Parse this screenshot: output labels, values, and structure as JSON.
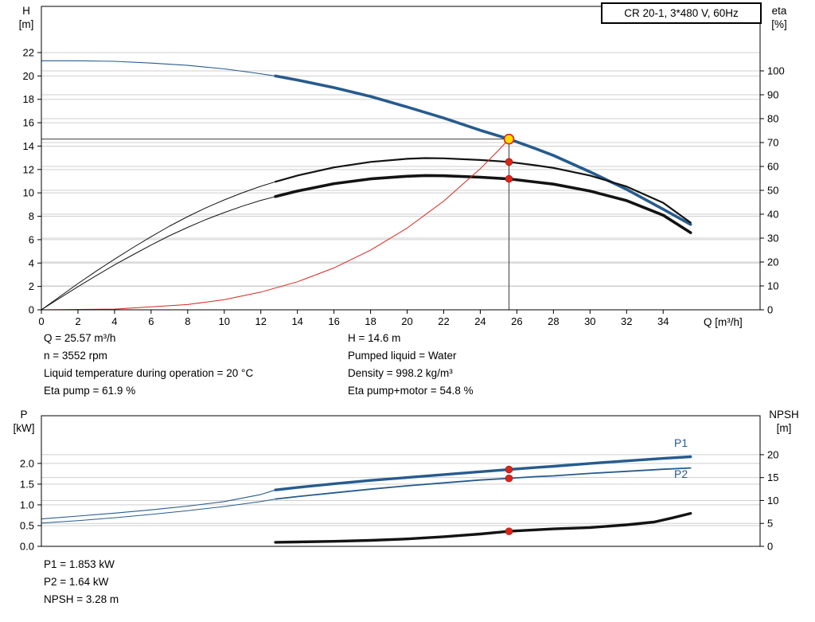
{
  "colors": {
    "blue": "#275b8d",
    "black": "#131313",
    "red": "#d9261c",
    "duty_fill": "#ffdd00",
    "grid": "#cfcfcf",
    "guide": "#3c3c3c",
    "axis": "#000000"
  },
  "annotations": {
    "top_left": [
      "Q = 25.57 m³/h",
      "n = 3552 rpm",
      "Liquid temperature during operation = 20 °C",
      "Eta pump = 61.9 %"
    ],
    "top_right": [
      "H = 14.6 m",
      "Pumped liquid = Water",
      "Density = 998.2 kg/m³",
      "Eta pump+motor = 54.8 %"
    ],
    "bottom": [
      "P1 = 1.853 kW",
      "P2 = 1.64 kW",
      "NPSH = 3.28 m"
    ]
  },
  "chart_data": [
    {
      "type": "line",
      "title": "CR 20-1, 3*480 V, 60Hz",
      "x_axis": {
        "label": "Q [m³/h]",
        "min": 0,
        "max": 39.3,
        "ticks": [
          "0",
          "2",
          "4",
          "6",
          "8",
          "10",
          "12",
          "14",
          "16",
          "18",
          "20",
          "22",
          "24",
          "26",
          "28",
          "30",
          "32",
          "34"
        ]
      },
      "y_left": {
        "name": "H",
        "unit": "[m]",
        "min": 0,
        "max": 25.95,
        "ticks": [
          "0",
          "2",
          "4",
          "6",
          "8",
          "10",
          "12",
          "14",
          "16",
          "18",
          "20",
          "22"
        ]
      },
      "y_right": {
        "name": "eta",
        "unit": "[%]",
        "min": 0,
        "max": 127,
        "ticks": [
          "0",
          "10",
          "20",
          "30",
          "40",
          "50",
          "60",
          "70",
          "80",
          "90",
          "100"
        ]
      },
      "duty_point": {
        "Q": 25.57,
        "H": 14.6
      },
      "series": [
        {
          "name": "qh-curve-extended",
          "axis": "left",
          "color": "blue",
          "width": 1.1,
          "points": [
            [
              0,
              21.3
            ],
            [
              2,
              21.3
            ],
            [
              4,
              21.25
            ],
            [
              6,
              21.1
            ],
            [
              8,
              20.9
            ],
            [
              10,
              20.6
            ],
            [
              11.5,
              20.3
            ],
            [
              12.8,
              20.0
            ]
          ]
        },
        {
          "name": "qh-curve",
          "axis": "left",
          "color": "blue",
          "width": 3.6,
          "points": [
            [
              12.8,
              20.0
            ],
            [
              14,
              19.65
            ],
            [
              16,
              19.0
            ],
            [
              18,
              18.25
            ],
            [
              20,
              17.35
            ],
            [
              22,
              16.4
            ],
            [
              24,
              15.35
            ],
            [
              25.57,
              14.6
            ],
            [
              27,
              13.8
            ],
            [
              28,
              13.2
            ],
            [
              30,
              11.8
            ],
            [
              32,
              10.3
            ],
            [
              34,
              8.6
            ],
            [
              35.5,
              7.3
            ]
          ]
        },
        {
          "name": "eta-pump-curve-extended",
          "axis": "right",
          "color": "black",
          "width": 1,
          "points": [
            [
              0,
              0
            ],
            [
              1,
              5.5
            ],
            [
              2,
              11
            ],
            [
              3,
              16.2
            ],
            [
              4,
              21.2
            ],
            [
              5,
              26
            ],
            [
              6,
              30.6
            ],
            [
              7,
              35
            ],
            [
              8,
              39
            ],
            [
              9,
              42.7
            ],
            [
              10,
              46
            ],
            [
              11,
              49
            ],
            [
              12,
              51.7
            ],
            [
              12.8,
              53.6
            ]
          ]
        },
        {
          "name": "eta-pump-curve",
          "axis": "right",
          "color": "black",
          "width": 2.2,
          "points": [
            [
              12.8,
              53.6
            ],
            [
              14,
              56.2
            ],
            [
              16,
              59.6
            ],
            [
              18,
              61.9
            ],
            [
              20,
              63.2
            ],
            [
              21,
              63.5
            ],
            [
              22,
              63.4
            ],
            [
              24,
              62.7
            ],
            [
              25.57,
              61.9
            ],
            [
              27,
              60.5
            ],
            [
              28,
              59.4
            ],
            [
              30,
              56.2
            ],
            [
              32,
              51.6
            ],
            [
              34,
              44.8
            ],
            [
              35.5,
              36.5
            ]
          ]
        },
        {
          "name": "eta-pump-motor-curve-extended",
          "axis": "right",
          "color": "black",
          "width": 1,
          "points": [
            [
              0,
              0
            ],
            [
              1,
              4.9
            ],
            [
              2,
              9.7
            ],
            [
              3,
              14.3
            ],
            [
              4,
              18.8
            ],
            [
              5,
              23
            ],
            [
              6,
              27.1
            ],
            [
              7,
              31
            ],
            [
              8,
              34.5
            ],
            [
              9,
              37.8
            ],
            [
              10,
              40.7
            ],
            [
              11,
              43.4
            ],
            [
              12,
              45.8
            ],
            [
              12.8,
              47.4
            ]
          ]
        },
        {
          "name": "eta-pump-motor-curve",
          "axis": "right",
          "color": "black",
          "width": 3.6,
          "points": [
            [
              12.8,
              47.4
            ],
            [
              14,
              49.7
            ],
            [
              16,
              52.8
            ],
            [
              18,
              54.8
            ],
            [
              20,
              55.9
            ],
            [
              21,
              56.2
            ],
            [
              22,
              56.1
            ],
            [
              24,
              55.5
            ],
            [
              25.57,
              54.8
            ],
            [
              27,
              53.5
            ],
            [
              28,
              52.6
            ],
            [
              30,
              49.7
            ],
            [
              32,
              45.7
            ],
            [
              34,
              39.6
            ],
            [
              35.5,
              32.3
            ]
          ]
        },
        {
          "name": "system-curve",
          "axis": "left",
          "color": "red",
          "width": 1,
          "points": [
            [
              0,
              0
            ],
            [
              4,
              0.06
            ],
            [
              8,
              0.45
            ],
            [
              10,
              0.87
            ],
            [
              12,
              1.51
            ],
            [
              14,
              2.4
            ],
            [
              16,
              3.58
            ],
            [
              18,
              5.1
            ],
            [
              20,
              6.99
            ],
            [
              22,
              9.3
            ],
            [
              24,
              12.07
            ],
            [
              25,
              13.65
            ],
            [
              25.57,
              14.6
            ]
          ]
        }
      ],
      "markers": [
        {
          "name": "duty-point-marker",
          "q": 25.57,
          "v": 14.6,
          "axis": "left",
          "style": "duty"
        },
        {
          "name": "eta-pump-point",
          "q": 25.57,
          "v": 61.9,
          "axis": "right",
          "style": "dot"
        },
        {
          "name": "eta-pump-motor-point",
          "q": 25.57,
          "v": 54.8,
          "axis": "right",
          "style": "dot"
        }
      ]
    },
    {
      "type": "line",
      "x_axis": {
        "label": "",
        "min": 0,
        "max": 39.3,
        "ticks": []
      },
      "y_left": {
        "name": "P",
        "unit": "[kW]",
        "min": 0,
        "max": 3.15,
        "ticks": [
          "0.0",
          "0.5",
          "1.0",
          "1.5",
          "2.0"
        ]
      },
      "y_right": {
        "name": "NPSH",
        "unit": "[m]",
        "min": 0,
        "max": 28.5,
        "ticks": [
          "0",
          "5",
          "10",
          "15",
          "20"
        ]
      },
      "series": [
        {
          "name": "p1-curve-extended",
          "axis": "left",
          "color": "blue",
          "width": 1.1,
          "points": [
            [
              0,
              0.66
            ],
            [
              2,
              0.73
            ],
            [
              4,
              0.8
            ],
            [
              6,
              0.88
            ],
            [
              8,
              0.97
            ],
            [
              10,
              1.08
            ],
            [
              12,
              1.25
            ],
            [
              12.8,
              1.36
            ]
          ]
        },
        {
          "name": "p1-curve",
          "axis": "left",
          "color": "blue",
          "width": 3.4,
          "points": [
            [
              12.8,
              1.36
            ],
            [
              14,
              1.42
            ],
            [
              16,
              1.51
            ],
            [
              18,
              1.59
            ],
            [
              20,
              1.66
            ],
            [
              22,
              1.73
            ],
            [
              24,
              1.8
            ],
            [
              25.57,
              1.853
            ],
            [
              27,
              1.9
            ],
            [
              28,
              1.93
            ],
            [
              30,
              2.0
            ],
            [
              32,
              2.06
            ],
            [
              34,
              2.12
            ],
            [
              35.5,
              2.16
            ]
          ]
        },
        {
          "name": "p2-curve-extended",
          "axis": "left",
          "color": "blue",
          "width": 1,
          "points": [
            [
              0,
              0.56
            ],
            [
              2,
              0.62
            ],
            [
              4,
              0.69
            ],
            [
              6,
              0.77
            ],
            [
              8,
              0.86
            ],
            [
              10,
              0.96
            ],
            [
              12,
              1.08
            ],
            [
              12.8,
              1.14
            ]
          ]
        },
        {
          "name": "p2-curve",
          "axis": "left",
          "color": "blue",
          "width": 1.8,
          "points": [
            [
              12.8,
              1.14
            ],
            [
              14,
              1.2
            ],
            [
              16,
              1.29
            ],
            [
              18,
              1.38
            ],
            [
              20,
              1.46
            ],
            [
              22,
              1.53
            ],
            [
              24,
              1.6
            ],
            [
              25.57,
              1.64
            ],
            [
              27,
              1.68
            ],
            [
              28,
              1.7
            ],
            [
              30,
              1.76
            ],
            [
              32,
              1.81
            ],
            [
              34,
              1.86
            ],
            [
              35.5,
              1.89
            ]
          ]
        },
        {
          "name": "npsh-curve",
          "axis": "right",
          "color": "black",
          "width": 3.4,
          "points": [
            [
              12.8,
              0.88
            ],
            [
              14,
              0.95
            ],
            [
              16,
              1.1
            ],
            [
              18,
              1.3
            ],
            [
              20,
              1.62
            ],
            [
              22,
              2.1
            ],
            [
              24,
              2.7
            ],
            [
              25.57,
              3.28
            ],
            [
              27,
              3.6
            ],
            [
              28,
              3.8
            ],
            [
              30,
              4.1
            ],
            [
              32,
              4.7
            ],
            [
              33.5,
              5.3
            ],
            [
              34.5,
              6.2
            ],
            [
              35.5,
              7.2
            ]
          ]
        }
      ],
      "labels": [
        {
          "text": "P1",
          "q": 34.6,
          "v": 2.4
        },
        {
          "text": "P2",
          "q": 34.6,
          "v": 1.65
        }
      ],
      "markers": [
        {
          "name": "p1-point",
          "q": 25.57,
          "v": 1.853,
          "axis": "left",
          "style": "dot"
        },
        {
          "name": "p2-point",
          "q": 25.57,
          "v": 1.64,
          "axis": "left",
          "style": "dot"
        },
        {
          "name": "npsh-point",
          "q": 25.57,
          "v": 3.28,
          "axis": "right",
          "style": "dot"
        }
      ]
    }
  ]
}
